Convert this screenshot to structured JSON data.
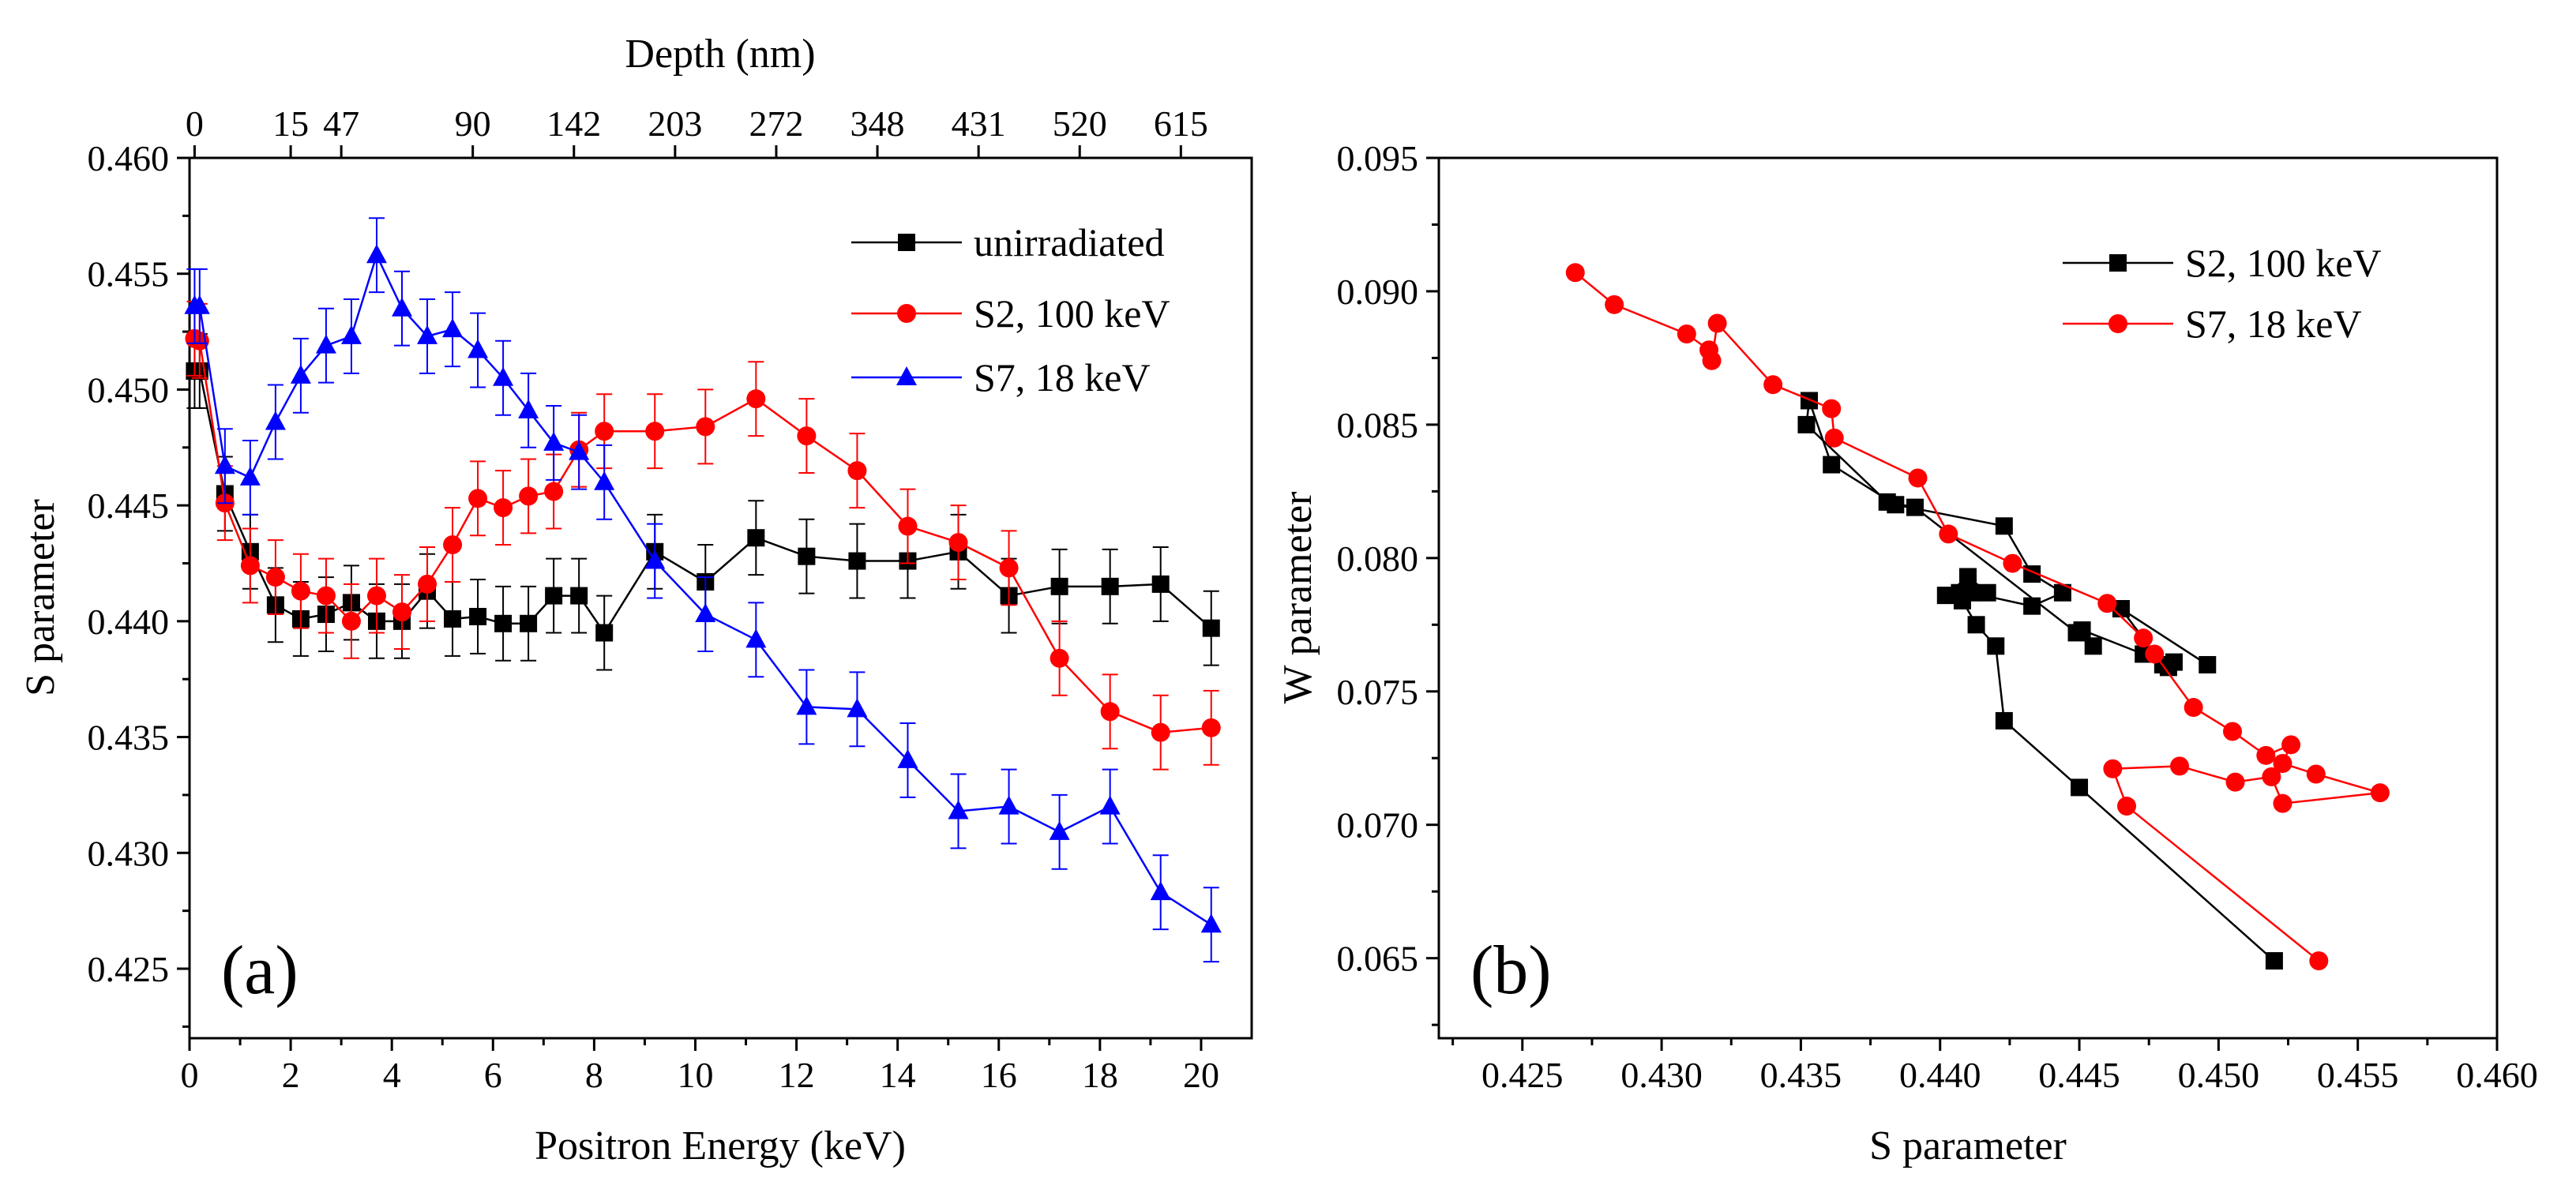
{
  "chart_data": [
    {
      "panel": "a",
      "type": "line",
      "panel_label": "(a)",
      "xlabel": "Positron Energy (keV)",
      "ylabel": "S parameter",
      "top_axis_label": "Depth (nm)",
      "xlim": [
        0,
        21
      ],
      "ylim": [
        0.422,
        0.46
      ],
      "x_ticks": [
        0,
        2,
        4,
        6,
        8,
        10,
        12,
        14,
        16,
        18,
        20
      ],
      "y_ticks": [
        0.425,
        0.43,
        0.435,
        0.44,
        0.445,
        0.45,
        0.455,
        0.46
      ],
      "y_tick_labels": [
        "0.425",
        "0.430",
        "0.435",
        "0.440",
        "0.445",
        "0.450",
        "0.455",
        "0.460"
      ],
      "top_ticks": [
        {
          "energy": 0.1,
          "label": "0"
        },
        {
          "energy": 2.0,
          "label": "15"
        },
        {
          "energy": 3.0,
          "label": "47"
        },
        {
          "energy": 5.6,
          "label": "90"
        },
        {
          "energy": 7.6,
          "label": "142"
        },
        {
          "energy": 9.6,
          "label": "203"
        },
        {
          "energy": 11.6,
          "label": "272"
        },
        {
          "energy": 13.6,
          "label": "348"
        },
        {
          "energy": 15.6,
          "label": "431"
        },
        {
          "energy": 17.6,
          "label": "520"
        },
        {
          "energy": 19.6,
          "label": "615"
        }
      ],
      "legend_position": "top-right",
      "series": [
        {
          "name": "unirradiated",
          "color": "#000000",
          "marker": "square",
          "x": [
            0.1,
            0.2,
            0.7,
            1.2,
            1.7,
            2.2,
            2.7,
            3.2,
            3.7,
            4.2,
            4.7,
            5.2,
            5.7,
            6.2,
            6.7,
            7.2,
            7.7,
            8.2,
            9.2,
            10.2,
            11.2,
            12.2,
            13.2,
            14.2,
            15.2,
            16.2,
            17.2,
            18.2,
            19.2,
            20.2
          ],
          "y": [
            0.4508,
            0.4508,
            0.4455,
            0.443,
            0.4407,
            0.4401,
            0.4403,
            0.4408,
            0.44,
            0.44,
            0.4413,
            0.4401,
            0.4402,
            0.4399,
            0.4399,
            0.4411,
            0.4411,
            0.4395,
            0.443,
            0.4417,
            0.4436,
            0.4428,
            0.4426,
            0.4426,
            0.443,
            0.4411,
            0.4415,
            0.4415,
            0.4416,
            0.4397
          ],
          "err": 0.0016
        },
        {
          "name": "S2, 100 keV",
          "color": "#ff0000",
          "marker": "circle",
          "x": [
            0.1,
            0.2,
            0.7,
            1.2,
            1.7,
            2.2,
            2.7,
            3.2,
            3.7,
            4.2,
            4.7,
            5.2,
            5.7,
            6.2,
            6.7,
            7.2,
            7.7,
            8.2,
            9.2,
            10.2,
            11.2,
            12.2,
            13.2,
            14.2,
            15.2,
            16.2,
            17.2,
            18.2,
            19.2,
            20.2
          ],
          "y": [
            0.4522,
            0.4521,
            0.4451,
            0.4424,
            0.4419,
            0.4413,
            0.4411,
            0.44,
            0.4411,
            0.4404,
            0.4416,
            0.4433,
            0.4453,
            0.4449,
            0.4454,
            0.4456,
            0.4474,
            0.4482,
            0.4482,
            0.4484,
            0.4496,
            0.448,
            0.4465,
            0.4441,
            0.4434,
            0.4423,
            0.4384,
            0.4361,
            0.4352,
            0.4354
          ],
          "err": 0.0016
        },
        {
          "name": "S7, 18 keV",
          "color": "#0000ff",
          "marker": "triangle",
          "x": [
            0.1,
            0.2,
            0.7,
            1.2,
            1.7,
            2.2,
            2.7,
            3.2,
            3.7,
            4.2,
            4.7,
            5.2,
            5.7,
            6.2,
            6.7,
            7.2,
            7.7,
            8.2,
            9.2,
            10.2,
            11.2,
            12.2,
            13.2,
            14.2,
            15.2,
            16.2,
            17.2,
            18.2,
            19.2,
            20.2
          ],
          "y": [
            0.4536,
            0.4536,
            0.4467,
            0.4462,
            0.4486,
            0.4506,
            0.4519,
            0.4523,
            0.4558,
            0.4535,
            0.4523,
            0.4526,
            0.4517,
            0.4505,
            0.4491,
            0.4477,
            0.4473,
            0.446,
            0.4426,
            0.4403,
            0.4392,
            0.4363,
            0.4362,
            0.434,
            0.4318,
            0.432,
            0.4309,
            0.432,
            0.4283,
            0.4269
          ],
          "err": 0.0016
        }
      ]
    },
    {
      "panel": "b",
      "type": "line",
      "panel_label": "(b)",
      "xlabel": "S parameter",
      "ylabel": "W parameter",
      "xlim": [
        0.422,
        0.46
      ],
      "ylim": [
        0.062,
        0.095
      ],
      "x_ticks": [
        0.425,
        0.43,
        0.435,
        0.44,
        0.445,
        0.45,
        0.455,
        0.46
      ],
      "x_tick_labels": [
        "0.425",
        "0.430",
        "0.435",
        "0.440",
        "0.445",
        "0.450",
        "0.455",
        "0.460"
      ],
      "y_ticks": [
        0.065,
        0.07,
        0.075,
        0.08,
        0.085,
        0.09,
        0.095
      ],
      "y_tick_labels": [
        "0.065",
        "0.070",
        "0.075",
        "0.080",
        "0.085",
        "0.090",
        "0.095"
      ],
      "legend_position": "top-right",
      "series": [
        {
          "name": "S2, 100 keV",
          "color": "#000000",
          "marker": "square",
          "x": [
            0.452,
            0.445,
            0.4423,
            0.442,
            0.4413,
            0.4408,
            0.4417,
            0.441,
            0.4402,
            0.4407,
            0.4411,
            0.4433,
            0.4444,
            0.4433,
            0.4423,
            0.4384,
            0.4361,
            0.4353,
            0.4352,
            0.4381,
            0.4391,
            0.4449,
            0.4455,
            0.4451,
            0.4473,
            0.4482,
            0.4484,
            0.448,
            0.4465,
            0.4496
          ],
          "y": [
            0.0649,
            0.0714,
            0.0739,
            0.0767,
            0.0775,
            0.0784,
            0.0787,
            0.0793,
            0.0786,
            0.0787,
            0.0787,
            0.0782,
            0.0787,
            0.0794,
            0.0812,
            0.082,
            0.0835,
            0.0859,
            0.085,
            0.0821,
            0.0819,
            0.0772,
            0.0767,
            0.0773,
            0.0764,
            0.0759,
            0.0761,
            0.076,
            0.0781,
            0.076
          ]
        },
        {
          "name": "S7, 18 keV",
          "color": "#ff0000",
          "marker": "circle",
          "x": [
            0.4269,
            0.4283,
            0.4309,
            0.4317,
            0.4318,
            0.432,
            0.434,
            0.4361,
            0.4362,
            0.4392,
            0.4403,
            0.4426,
            0.446,
            0.4473,
            0.4477,
            0.4491,
            0.4505,
            0.4517,
            0.4526,
            0.4523,
            0.4535,
            0.4558,
            0.4523,
            0.4519,
            0.4506,
            0.4486,
            0.4462,
            0.4467,
            0.4536
          ],
          "y": [
            0.0907,
            0.0895,
            0.0884,
            0.0878,
            0.0874,
            0.0888,
            0.0865,
            0.0856,
            0.0845,
            0.083,
            0.0809,
            0.0798,
            0.0783,
            0.077,
            0.0764,
            0.0744,
            0.0735,
            0.0726,
            0.073,
            0.0723,
            0.0719,
            0.0712,
            0.0708,
            0.0718,
            0.0716,
            0.0722,
            0.0721,
            0.0707,
            0.0649
          ]
        }
      ]
    }
  ]
}
